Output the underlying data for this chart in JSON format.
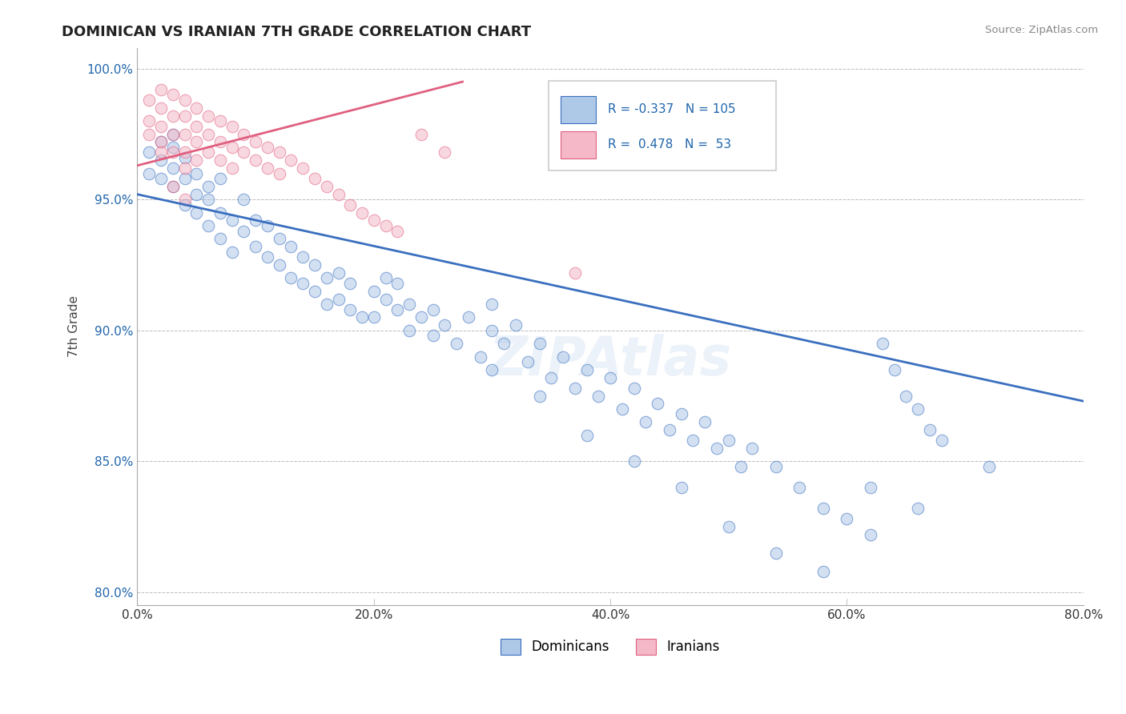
{
  "title": "DOMINICAN VS IRANIAN 7TH GRADE CORRELATION CHART",
  "source": "Source: ZipAtlas.com",
  "ylabel": "7th Grade",
  "xlim": [
    0.0,
    0.8
  ],
  "ylim": [
    0.795,
    1.008
  ],
  "yticks": [
    0.8,
    0.85,
    0.9,
    0.95,
    1.0
  ],
  "ytick_labels": [
    "80.0%",
    "85.0%",
    "90.0%",
    "95.0%",
    "100.0%"
  ],
  "xticks": [
    0.0,
    0.2,
    0.4,
    0.6,
    0.8
  ],
  "xtick_labels": [
    "0.0%",
    "20.0%",
    "40.0%",
    "60.0%",
    "80.0%"
  ],
  "legend_blue_label": "Dominicans",
  "legend_pink_label": "Iranians",
  "R_blue": -0.337,
  "N_blue": 105,
  "R_pink": 0.478,
  "N_pink": 53,
  "blue_color": "#aec8e8",
  "pink_color": "#f4b8c8",
  "blue_line_color": "#3a6fbf",
  "pink_line_color": "#e06080",
  "blue_line_x": [
    0.0,
    0.8
  ],
  "blue_line_y": [
    0.952,
    0.873
  ],
  "pink_line_x": [
    0.0,
    0.275
  ],
  "pink_line_y": [
    0.963,
    0.995
  ],
  "blue_x": [
    0.01,
    0.01,
    0.02,
    0.02,
    0.02,
    0.03,
    0.03,
    0.03,
    0.03,
    0.04,
    0.04,
    0.04,
    0.05,
    0.05,
    0.05,
    0.06,
    0.06,
    0.06,
    0.07,
    0.07,
    0.07,
    0.08,
    0.08,
    0.09,
    0.09,
    0.1,
    0.1,
    0.11,
    0.11,
    0.12,
    0.12,
    0.13,
    0.13,
    0.14,
    0.14,
    0.15,
    0.15,
    0.16,
    0.16,
    0.17,
    0.17,
    0.18,
    0.18,
    0.19,
    0.2,
    0.2,
    0.21,
    0.21,
    0.22,
    0.22,
    0.23,
    0.23,
    0.24,
    0.25,
    0.25,
    0.26,
    0.27,
    0.28,
    0.29,
    0.3,
    0.3,
    0.31,
    0.32,
    0.33,
    0.34,
    0.35,
    0.36,
    0.37,
    0.38,
    0.39,
    0.4,
    0.41,
    0.42,
    0.43,
    0.44,
    0.45,
    0.46,
    0.47,
    0.48,
    0.49,
    0.5,
    0.51,
    0.52,
    0.54,
    0.56,
    0.58,
    0.6,
    0.62,
    0.63,
    0.64,
    0.65,
    0.66,
    0.67,
    0.68,
    0.72,
    0.3,
    0.34,
    0.38,
    0.42,
    0.46,
    0.5,
    0.54,
    0.58,
    0.62,
    0.66
  ],
  "blue_y": [
    0.96,
    0.968,
    0.965,
    0.972,
    0.958,
    0.97,
    0.955,
    0.962,
    0.975,
    0.948,
    0.958,
    0.966,
    0.952,
    0.945,
    0.96,
    0.95,
    0.94,
    0.955,
    0.945,
    0.935,
    0.958,
    0.942,
    0.93,
    0.938,
    0.95,
    0.932,
    0.942,
    0.928,
    0.94,
    0.925,
    0.935,
    0.92,
    0.932,
    0.918,
    0.928,
    0.915,
    0.925,
    0.91,
    0.92,
    0.912,
    0.922,
    0.908,
    0.918,
    0.905,
    0.915,
    0.905,
    0.912,
    0.92,
    0.908,
    0.918,
    0.9,
    0.91,
    0.905,
    0.898,
    0.908,
    0.902,
    0.895,
    0.905,
    0.89,
    0.9,
    0.91,
    0.895,
    0.902,
    0.888,
    0.895,
    0.882,
    0.89,
    0.878,
    0.885,
    0.875,
    0.882,
    0.87,
    0.878,
    0.865,
    0.872,
    0.862,
    0.868,
    0.858,
    0.865,
    0.855,
    0.858,
    0.848,
    0.855,
    0.848,
    0.84,
    0.832,
    0.828,
    0.822,
    0.895,
    0.885,
    0.875,
    0.87,
    0.862,
    0.858,
    0.848,
    0.885,
    0.875,
    0.86,
    0.85,
    0.84,
    0.825,
    0.815,
    0.808,
    0.84,
    0.832
  ],
  "pink_x": [
    0.01,
    0.01,
    0.01,
    0.02,
    0.02,
    0.02,
    0.02,
    0.02,
    0.03,
    0.03,
    0.03,
    0.03,
    0.04,
    0.04,
    0.04,
    0.04,
    0.04,
    0.05,
    0.05,
    0.05,
    0.05,
    0.06,
    0.06,
    0.06,
    0.07,
    0.07,
    0.07,
    0.08,
    0.08,
    0.08,
    0.09,
    0.09,
    0.1,
    0.1,
    0.11,
    0.11,
    0.12,
    0.12,
    0.13,
    0.14,
    0.15,
    0.16,
    0.17,
    0.18,
    0.19,
    0.2,
    0.21,
    0.22,
    0.24,
    0.26,
    0.03,
    0.04,
    0.37
  ],
  "pink_y": [
    0.988,
    0.98,
    0.975,
    0.992,
    0.985,
    0.978,
    0.972,
    0.968,
    0.99,
    0.982,
    0.975,
    0.968,
    0.988,
    0.982,
    0.975,
    0.968,
    0.962,
    0.985,
    0.978,
    0.972,
    0.965,
    0.982,
    0.975,
    0.968,
    0.98,
    0.972,
    0.965,
    0.978,
    0.97,
    0.962,
    0.975,
    0.968,
    0.972,
    0.965,
    0.97,
    0.962,
    0.968,
    0.96,
    0.965,
    0.962,
    0.958,
    0.955,
    0.952,
    0.948,
    0.945,
    0.942,
    0.94,
    0.938,
    0.975,
    0.968,
    0.955,
    0.95,
    0.922
  ]
}
